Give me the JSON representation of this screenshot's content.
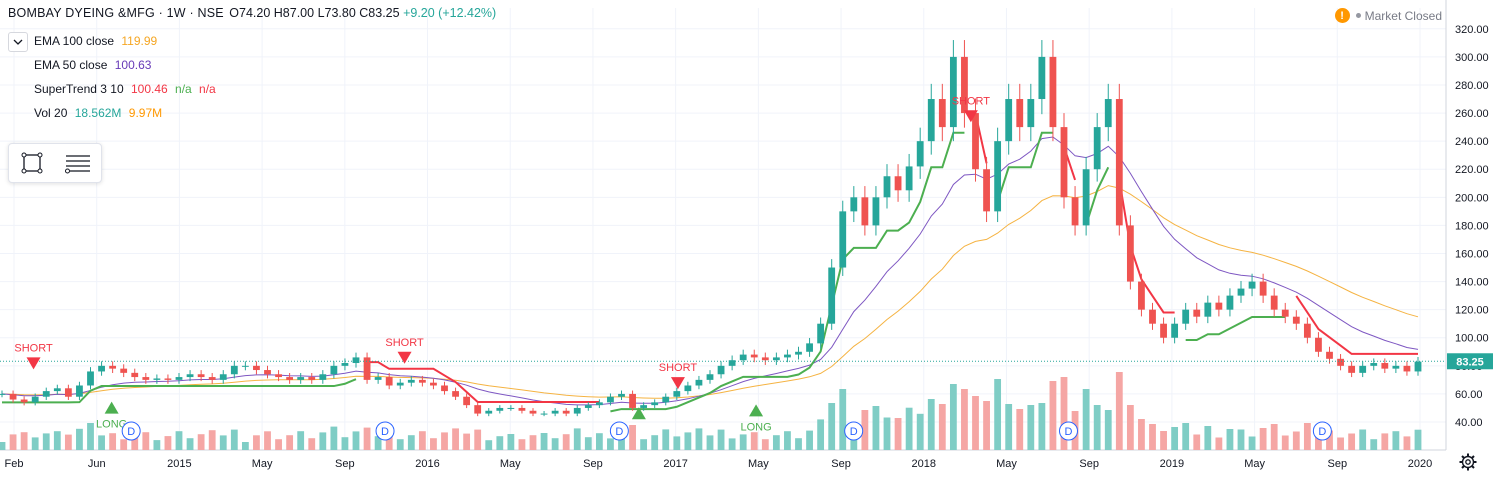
{
  "header": {
    "symbol": "BOMBAY DYEING &MFG · 1W · NSE",
    "open": "O74.20",
    "high": "H87.00",
    "low": "L73.80",
    "close": "C83.25",
    "change": "+9.20 (+12.42%)"
  },
  "indicators": [
    {
      "label": "EMA 100 close",
      "v1": "119.99",
      "v2": "",
      "v3": "",
      "color": "#f5a623"
    },
    {
      "label": "EMA 50 close",
      "v1": "100.63",
      "v2": "",
      "v3": "",
      "color": "#673ab7"
    },
    {
      "label": "SuperTrend 3 10",
      "v1": "100.46",
      "v2": "n/a",
      "v3": "n/a",
      "color": "#f23645"
    },
    {
      "label": "Vol 20",
      "v1": "18.562M",
      "v2": "9.97M",
      "v3": "",
      "color": "#26a69a",
      "color2": "#ff9800"
    }
  ],
  "market_status": "Market Closed",
  "price_label": "83.25",
  "colors": {
    "up": "#26a69a",
    "down": "#ef5350",
    "vol_up": "#7fcdc5",
    "vol_down": "#f5a6a4",
    "ema100": "#f5b342",
    "ema50": "#7e57c2",
    "st_up": "#4caf50",
    "st_down": "#f23645",
    "grid": "#f0f3fa",
    "last": "#26a69a"
  },
  "chart_data": {
    "type": "candlestick",
    "title": "BOMBAY DYEING &MFG · 1W · NSE",
    "x_ticks": [
      "Feb",
      "Jun",
      "2015",
      "May",
      "Sep",
      "2016",
      "May",
      "Sep",
      "2017",
      "May",
      "Sep",
      "2018",
      "May",
      "Sep",
      "2019",
      "May",
      "Sep",
      "2020"
    ],
    "y_ticks": [
      40,
      60,
      80,
      100,
      120,
      140,
      160,
      180,
      200,
      220,
      240,
      260,
      280,
      300,
      320
    ],
    "ylim": [
      26,
      330
    ],
    "last_price": 83.25,
    "close_series": [
      60,
      56,
      54,
      58,
      62,
      64,
      58,
      66,
      76,
      80,
      78,
      75,
      72,
      70,
      71,
      70,
      72,
      74,
      72,
      70,
      74,
      80,
      80,
      77,
      74,
      72,
      70,
      72,
      70,
      74,
      80,
      82,
      86,
      70,
      72,
      66,
      68,
      70,
      68,
      66,
      62,
      58,
      52,
      46,
      48,
      50,
      50,
      48,
      46,
      46,
      48,
      46,
      50,
      52,
      54,
      58,
      60,
      50,
      52,
      54,
      58,
      62,
      66,
      70,
      74,
      80,
      84,
      88,
      86,
      84,
      86,
      88,
      90,
      96,
      110,
      150,
      190,
      200,
      180,
      200,
      215,
      205,
      222,
      240,
      270,
      250,
      300,
      260,
      220,
      190,
      240,
      270,
      250,
      270,
      300,
      250,
      200,
      180,
      220,
      250,
      270,
      180,
      140,
      120,
      110,
      100,
      110,
      120,
      115,
      125,
      120,
      130,
      135,
      140,
      130,
      120,
      115,
      110,
      100,
      90,
      85,
      80,
      75,
      80,
      82,
      78,
      80,
      76,
      83
    ],
    "markers": [
      {
        "type": "SHORT",
        "label": "SHORT",
        "x": "2014-02",
        "y": 86
      },
      {
        "type": "LONG",
        "label": "LONG",
        "x": "2014-06",
        "y": 46
      },
      {
        "type": "SHORT",
        "label": "SHORT",
        "x": "2015-09",
        "y": 90
      },
      {
        "type": "LONG",
        "label": "",
        "x": "2016-09",
        "y": 42
      },
      {
        "type": "SHORT",
        "label": "SHORT",
        "x": "2016-11",
        "y": 72
      },
      {
        "type": "LONG",
        "label": "LONG",
        "x": "2017-03",
        "y": 44
      },
      {
        "type": "SHORT",
        "label": "SHORT",
        "x": "2018-02",
        "y": 262
      }
    ],
    "dividends": [
      "2014-07",
      "2015-08",
      "2016-08",
      "2017-08",
      "2018-07",
      "2019-08"
    ],
    "dividend_label": "D",
    "legend": [
      "EMA 100 close",
      "EMA 50 close",
      "SuperTrend 3 10",
      "Vol 20"
    ]
  }
}
